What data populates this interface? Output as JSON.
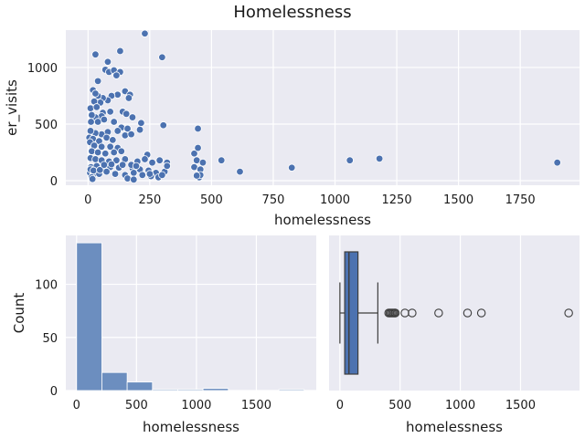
{
  "figure": {
    "title": "Homelessness"
  },
  "theme": {
    "panel_bg": "#eaeaf2",
    "grid": "#ffffff",
    "accent": "#4c72b0",
    "hist_fill": "#6c8ebf"
  },
  "chart_data": [
    {
      "type": "scatter",
      "xlabel": "homelessness",
      "ylabel": "er_visits",
      "xlim": [
        -90,
        1990
      ],
      "ylim": [
        -40,
        1330
      ],
      "xticks": [
        0,
        250,
        500,
        750,
        1000,
        1250,
        1500,
        1750
      ],
      "yticks": [
        0,
        500,
        1000
      ],
      "grid": true,
      "points": [
        [
          230,
          1300
        ],
        [
          300,
          1090
        ],
        [
          30,
          1115
        ],
        [
          130,
          1145
        ],
        [
          80,
          1050
        ],
        [
          70,
          980
        ],
        [
          85,
          960
        ],
        [
          105,
          975
        ],
        [
          130,
          960
        ],
        [
          115,
          930
        ],
        [
          40,
          880
        ],
        [
          20,
          800
        ],
        [
          150,
          790
        ],
        [
          170,
          760
        ],
        [
          165,
          730
        ],
        [
          120,
          760
        ],
        [
          95,
          750
        ],
        [
          80,
          710
        ],
        [
          60,
          730
        ],
        [
          50,
          690
        ],
        [
          40,
          750
        ],
        [
          30,
          770
        ],
        [
          25,
          700
        ],
        [
          10,
          640
        ],
        [
          35,
          650
        ],
        [
          60,
          600
        ],
        [
          90,
          610
        ],
        [
          140,
          610
        ],
        [
          155,
          590
        ],
        [
          180,
          560
        ],
        [
          55,
          570
        ],
        [
          30,
          560
        ],
        [
          15,
          580
        ],
        [
          12,
          520
        ],
        [
          40,
          520
        ],
        [
          65,
          540
        ],
        [
          105,
          520
        ],
        [
          135,
          470
        ],
        [
          160,
          460
        ],
        [
          215,
          510
        ],
        [
          305,
          490
        ],
        [
          445,
          460
        ],
        [
          120,
          440
        ],
        [
          80,
          430
        ],
        [
          55,
          410
        ],
        [
          30,
          420
        ],
        [
          10,
          440
        ],
        [
          5,
          380
        ],
        [
          20,
          370
        ],
        [
          45,
          350
        ],
        [
          75,
          380
        ],
        [
          100,
          360
        ],
        [
          150,
          400
        ],
        [
          175,
          410
        ],
        [
          210,
          450
        ],
        [
          8,
          340
        ],
        [
          25,
          310
        ],
        [
          55,
          300
        ],
        [
          90,
          300
        ],
        [
          120,
          290
        ],
        [
          15,
          260
        ],
        [
          40,
          250
        ],
        [
          70,
          240
        ],
        [
          105,
          250
        ],
        [
          135,
          260
        ],
        [
          240,
          230
        ],
        [
          430,
          240
        ],
        [
          445,
          290
        ],
        [
          10,
          200
        ],
        [
          30,
          190
        ],
        [
          55,
          180
        ],
        [
          85,
          170
        ],
        [
          115,
          180
        ],
        [
          150,
          190
        ],
        [
          200,
          170
        ],
        [
          230,
          190
        ],
        [
          260,
          160
        ],
        [
          290,
          180
        ],
        [
          320,
          160
        ],
        [
          440,
          180
        ],
        [
          465,
          160
        ],
        [
          540,
          180
        ],
        [
          1060,
          180
        ],
        [
          1180,
          195
        ],
        [
          1900,
          160
        ],
        [
          12,
          120
        ],
        [
          35,
          130
        ],
        [
          60,
          110
        ],
        [
          90,
          120
        ],
        [
          125,
          115
        ],
        [
          180,
          110
        ],
        [
          210,
          100
        ],
        [
          245,
          90
        ],
        [
          275,
          70
        ],
        [
          310,
          80
        ],
        [
          320,
          130
        ],
        [
          430,
          120
        ],
        [
          455,
          100
        ],
        [
          615,
          80
        ],
        [
          825,
          115
        ],
        [
          8,
          70
        ],
        [
          20,
          50
        ],
        [
          45,
          60
        ],
        [
          75,
          80
        ],
        [
          110,
          60
        ],
        [
          150,
          50
        ],
        [
          185,
          70
        ],
        [
          220,
          50
        ],
        [
          255,
          40
        ],
        [
          285,
          30
        ],
        [
          15,
          30
        ],
        [
          18,
          15
        ],
        [
          160,
          20
        ],
        [
          185,
          10
        ],
        [
          10,
          100
        ],
        [
          22,
          90
        ],
        [
          48,
          95
        ],
        [
          65,
          140
        ],
        [
          95,
          145
        ],
        [
          140,
          140
        ],
        [
          175,
          140
        ],
        [
          195,
          130
        ],
        [
          250,
          60
        ],
        [
          300,
          50
        ],
        [
          450,
          30
        ],
        [
          455,
          50
        ],
        [
          440,
          45
        ]
      ]
    },
    {
      "type": "bar",
      "subtype": "histogram",
      "xlabel": "homelessness",
      "ylabel": "Count",
      "xlim": [
        -90,
        2000
      ],
      "ylim": [
        0,
        146
      ],
      "xticks": [
        0,
        500,
        1000,
        1500
      ],
      "yticks": [
        0,
        50,
        100
      ],
      "bin_edges": [
        0,
        211,
        422,
        633,
        844,
        1055,
        1266,
        1477,
        1688,
        1899
      ],
      "values": [
        139,
        17,
        8,
        1,
        1,
        2,
        0,
        0,
        1
      ],
      "grid": true
    },
    {
      "type": "box",
      "xlabel": "homelessness",
      "xlim": [
        -90,
        1990
      ],
      "xticks": [
        0,
        500,
        1000,
        1500
      ],
      "min": 0,
      "q1": 40,
      "median": 75,
      "q3": 150,
      "whisker_high": 315,
      "outliers": [
        405,
        415,
        425,
        435,
        445,
        455,
        460,
        540,
        600,
        820,
        1060,
        1175,
        1900
      ],
      "grid": true
    }
  ]
}
